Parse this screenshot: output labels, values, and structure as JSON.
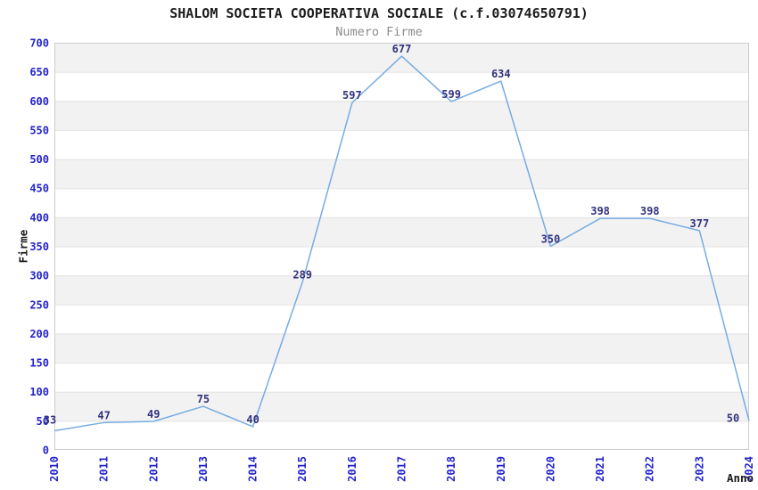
{
  "chart_data": {
    "type": "line",
    "title": "SHALOM SOCIETA COOPERATIVA SOCIALE (c.f.03074650791)",
    "subtitle": "Numero Firme",
    "xlabel": "Anno",
    "ylabel": "Firme",
    "categories": [
      "2010",
      "2011",
      "2012",
      "2013",
      "2014",
      "2015",
      "2016",
      "2017",
      "2018",
      "2019",
      "2020",
      "2021",
      "2022",
      "2023",
      "2024"
    ],
    "values": [
      33,
      47,
      49,
      75,
      40,
      289,
      597,
      677,
      599,
      634,
      350,
      398,
      398,
      377,
      50
    ],
    "ylim": [
      0,
      700
    ],
    "ytick_step": 50,
    "yticks": [
      0,
      50,
      100,
      150,
      200,
      250,
      300,
      350,
      400,
      450,
      500,
      550,
      600,
      650,
      700
    ],
    "grid": "horizontal-lines-with-alternating-bands",
    "legend": "none",
    "colors": {
      "line": "#76ace4",
      "tick_label": "#2424cc",
      "value_label": "#32327e",
      "band_fill": "#f2f2f2",
      "gridline": "#e2e2e2",
      "plot_border": "#cccccc",
      "title": "#1c1c1c",
      "subtitle": "#8c8c8c",
      "axis_title": "#1a1a1a",
      "background": "#ffffff"
    }
  }
}
